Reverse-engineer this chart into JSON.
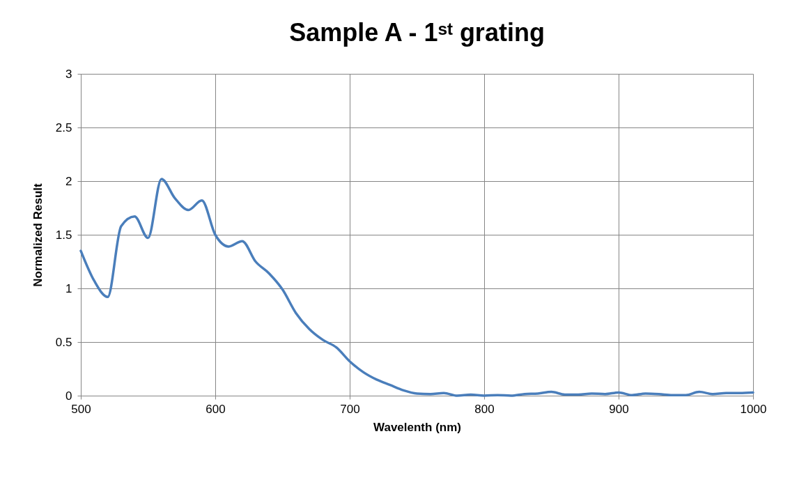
{
  "chart_data": {
    "type": "line",
    "title": "Sample A - 1ˢᵗ grating",
    "xlabel": "Wavelenth (nm)",
    "ylabel": "Normalized Result",
    "x": [
      500,
      510,
      520,
      530,
      540,
      550,
      560,
      570,
      580,
      590,
      600,
      610,
      620,
      630,
      640,
      650,
      660,
      670,
      680,
      690,
      700,
      710,
      720,
      730,
      740,
      750,
      760,
      770,
      780,
      790,
      800,
      810,
      820,
      830,
      840,
      850,
      860,
      870,
      880,
      890,
      900,
      910,
      920,
      930,
      940,
      950,
      960,
      970,
      980,
      990,
      1000
    ],
    "series": [
      {
        "color": "#4a7ebb",
        "values": [
          1.35,
          1.07,
          0.92,
          1.58,
          1.67,
          1.47,
          2.02,
          1.84,
          1.73,
          1.82,
          1.5,
          1.39,
          1.44,
          1.25,
          1.14,
          0.99,
          0.77,
          0.62,
          0.52,
          0.45,
          0.32,
          0.22,
          0.15,
          0.1,
          0.05,
          0.02,
          0.015,
          0.025,
          0.0,
          0.01,
          0.0,
          0.005,
          0.0,
          0.015,
          0.02,
          0.035,
          0.01,
          0.01,
          0.02,
          0.015,
          0.03,
          0.005,
          0.02,
          0.015,
          0.005,
          0.005,
          0.035,
          0.015,
          0.025,
          0.025,
          0.03
        ]
      }
    ],
    "xlim": [
      500,
      1000
    ],
    "xticks": [
      500,
      600,
      700,
      800,
      900,
      1000
    ],
    "ylim": [
      0,
      3
    ],
    "yticks": [
      0,
      0.5,
      1,
      1.5,
      2,
      2.5,
      3
    ],
    "grid": true,
    "legend": false,
    "marker": "none",
    "line_style": "solid"
  }
}
